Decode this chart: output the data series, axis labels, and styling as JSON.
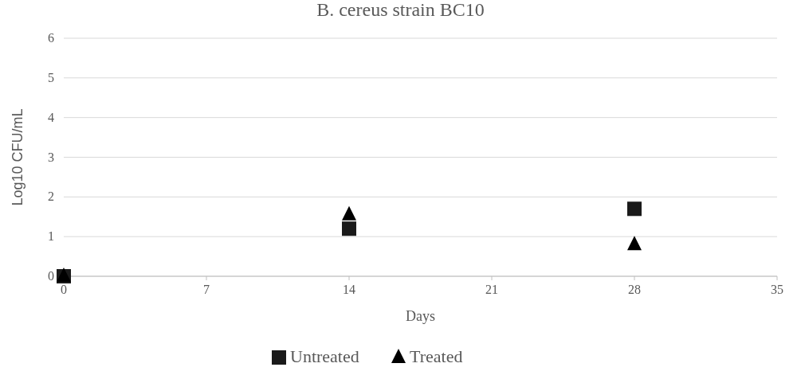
{
  "chart_data": {
    "type": "scatter",
    "title": "B. cereus strain BC10",
    "xlabel": "Days",
    "ylabel": "Log10 CFU/mL",
    "xlim": [
      0,
      35
    ],
    "xticks": [
      0,
      7,
      14,
      21,
      28,
      35
    ],
    "ylim": [
      0,
      6
    ],
    "yticks": [
      0,
      1,
      2,
      3,
      4,
      5,
      6
    ],
    "grid": "y",
    "legend": "bottom",
    "series": [
      {
        "name": "Untreated",
        "color": "#1a1a1a",
        "marker": "square",
        "x": [
          0,
          14,
          28
        ],
        "values": [
          0,
          1.2,
          1.7
        ]
      },
      {
        "name": "Treated",
        "color": "#000000",
        "marker": "triangle",
        "x": [
          0,
          14,
          28
        ],
        "values": [
          0,
          1.55,
          0.8
        ]
      }
    ]
  }
}
